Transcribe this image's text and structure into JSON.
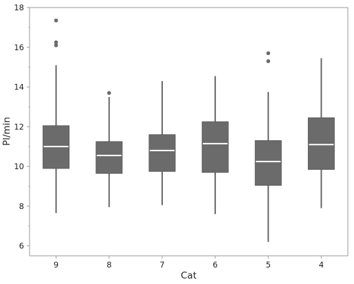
{
  "chart_data": {
    "type": "box",
    "xlabel": "Cat",
    "ylabel": "Pl/min",
    "ylim": [
      5.5,
      18
    ],
    "yticks": [
      6,
      8,
      10,
      12,
      14,
      16,
      18
    ],
    "categories": [
      "9",
      "8",
      "7",
      "6",
      "5",
      "4"
    ],
    "boxes": [
      {
        "category": "9",
        "whisker_low": 7.65,
        "q1": 9.9,
        "median": 11.0,
        "q3": 12.05,
        "whisker_high": 15.1,
        "outliers": [
          16.1,
          16.25,
          17.35
        ]
      },
      {
        "category": "8",
        "whisker_low": 7.95,
        "q1": 9.65,
        "median": 10.55,
        "q3": 11.25,
        "whisker_high": 13.5,
        "outliers": [
          13.7
        ]
      },
      {
        "category": "7",
        "whisker_low": 8.05,
        "q1": 9.75,
        "median": 10.8,
        "q3": 11.6,
        "whisker_high": 14.3,
        "outliers": []
      },
      {
        "category": "6",
        "whisker_low": 7.6,
        "q1": 9.7,
        "median": 11.15,
        "q3": 12.25,
        "whisker_high": 14.55,
        "outliers": []
      },
      {
        "category": "5",
        "whisker_low": 6.2,
        "q1": 9.05,
        "median": 10.25,
        "q3": 11.3,
        "whisker_high": 13.75,
        "outliers": [
          15.3,
          15.7
        ]
      },
      {
        "category": "4",
        "whisker_low": 7.9,
        "q1": 9.85,
        "median": 11.1,
        "q3": 12.45,
        "whisker_high": 15.45,
        "outliers": []
      }
    ],
    "colors": {
      "box_fill": "#6b6b6b",
      "box_stroke": "#5a5a5a",
      "median": "#ffffff",
      "whisker": "#666666",
      "outlier": "#6a6a6a",
      "frame": "#9a9a9a"
    },
    "grid": false,
    "legend": "none"
  }
}
